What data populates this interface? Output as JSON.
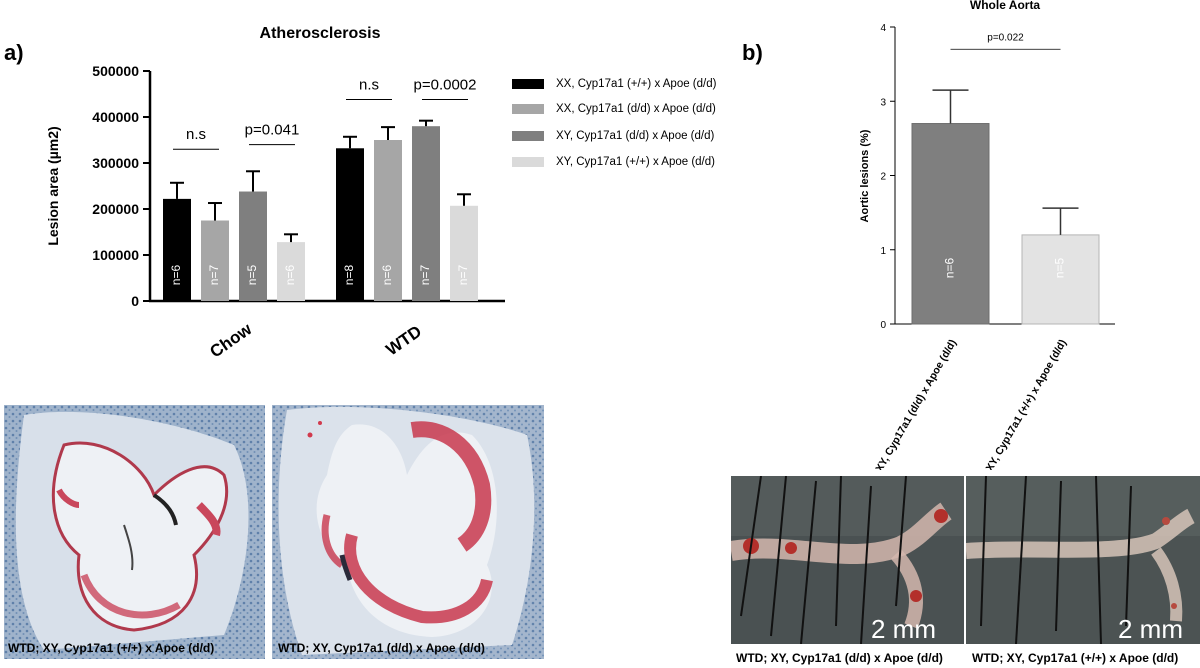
{
  "panels": {
    "a_label": "a)",
    "b_label": "b)"
  },
  "legend": [
    {
      "label": "XX, Cyp17a1 (+/+) x Apoe (d/d)",
      "color": "#000000"
    },
    {
      "label": "XX, Cyp17a1 (d/d) x Apoe (d/d)",
      "color": "#a6a6a6"
    },
    {
      "label": "XY, Cyp17a1 (d/d) x Apoe (d/d)",
      "color": "#7f7f7f"
    },
    {
      "label": "XY, Cyp17a1 (+/+) x Apoe (d/d)",
      "color": "#dadada"
    }
  ],
  "chart_data": [
    {
      "type": "bar",
      "title": "Atherosclerosis",
      "xlabel": "",
      "ylabel": "Lesion area (µm2)",
      "ylim": [
        0,
        500000
      ],
      "yticks": [
        "0",
        "100000",
        "200000",
        "300000",
        "400000",
        "500000"
      ],
      "categories": [
        "Chow",
        "WTD"
      ],
      "series": [
        {
          "name": "XX, Cyp17a1 (+/+) x Apoe (d/d)",
          "color": "#000000",
          "values": [
            222000,
            332000
          ],
          "errors": [
            35000,
            25000
          ],
          "n_labels": [
            "n=6",
            "n=8"
          ]
        },
        {
          "name": "XX, Cyp17a1 (d/d) x Apoe (d/d)",
          "color": "#a6a6a6",
          "values": [
            175000,
            350000
          ],
          "errors": [
            38000,
            28000
          ],
          "n_labels": [
            "n=7",
            "n=6"
          ]
        },
        {
          "name": "XY, Cyp17a1 (d/d) x Apoe (d/d)",
          "color": "#7f7f7f",
          "values": [
            238000,
            380000
          ],
          "errors": [
            44000,
            12000
          ],
          "n_labels": [
            "n=5",
            "n=7"
          ]
        },
        {
          "name": "XY, Cyp17a1 (+/+) x Apoe (d/d)",
          "color": "#dadada",
          "values": [
            128000,
            207000
          ],
          "errors": [
            17000,
            25000
          ],
          "n_labels": [
            "n=6",
            "n=7"
          ]
        }
      ],
      "annotations": [
        {
          "text": "n.s",
          "category": 0,
          "from_series": 0,
          "to_series": 1,
          "level": 330000
        },
        {
          "text": "p=0.041",
          "category": 0,
          "from_series": 2,
          "to_series": 3,
          "level": 340000
        },
        {
          "text": "n.s",
          "category": 1,
          "from_series": 0,
          "to_series": 1,
          "level": 438000
        },
        {
          "text": "p=0.0002",
          "category": 1,
          "from_series": 2,
          "to_series": 3,
          "level": 438000
        }
      ],
      "legend_position": "right"
    },
    {
      "type": "bar",
      "title": "Whole Aorta",
      "xlabel": "",
      "ylabel": "Aortic lesions (%)",
      "ylim": [
        0,
        4
      ],
      "yticks": [
        "0",
        "1",
        "2",
        "3",
        "4"
      ],
      "categories": [
        "XY, Cyp17a1 (d/d) x Apoe (d/d)",
        "XY, Cyp17a1 (+/+) x Apoe (d/d)"
      ],
      "values": [
        2.7,
        1.2
      ],
      "errors": [
        0.45,
        0.36
      ],
      "colors": [
        "#7f7f7f",
        "#e3e3e3"
      ],
      "n_labels": [
        "n=6",
        "n=5"
      ],
      "annotation": {
        "text": "p=0.022",
        "level": 3.7
      }
    }
  ],
  "images": {
    "histology_left_caption": "WTD; XY, Cyp17a1 (+/+) x Apoe (d/d)",
    "histology_right_caption": "WTD; XY, Cyp17a1 (d/d) x Apoe (d/d)",
    "aorta_left_caption": "WTD; XY, Cyp17a1 (d/d) x Apoe (d/d)",
    "aorta_right_caption": "WTD; XY, Cyp17a1 (+/+) x Apoe (d/d)",
    "scale_bar_left": "2 mm",
    "scale_bar_right": "2 mm"
  }
}
